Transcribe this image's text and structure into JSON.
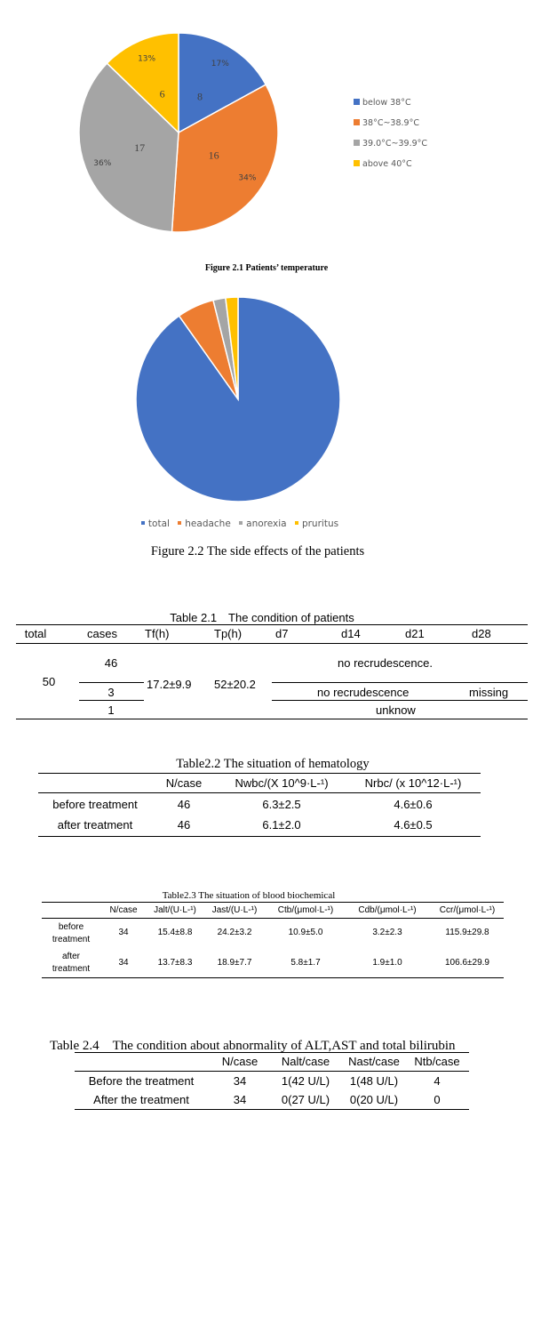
{
  "figure1": {
    "caption": "Figure 2.1 Patients’ temperature",
    "slices": [
      {
        "legend": "below 38°C",
        "count": "8",
        "percent": "17%",
        "value": 8,
        "color": "#4472c4"
      },
      {
        "legend": "38°C~38.9°C",
        "count": "16",
        "percent": "34%",
        "value": 16,
        "color": "#ed7d31"
      },
      {
        "legend": "39.0°C~39.9°C",
        "count": "17",
        "percent": "36%",
        "value": 17,
        "color": "#a5a5a5"
      },
      {
        "legend": "above 40°C",
        "count": "6",
        "percent": "13%",
        "value": 6,
        "color": "#ffc000"
      }
    ]
  },
  "figure2": {
    "caption": "Figure 2.2 The side effects of the patients",
    "slices": [
      {
        "legend": "total",
        "value": 46,
        "color": "#4472c4"
      },
      {
        "legend": "headache",
        "value": 3,
        "color": "#ed7d31"
      },
      {
        "legend": "anorexia",
        "value": 1,
        "color": "#a5a5a5"
      },
      {
        "legend": "pruritus",
        "value": 1,
        "color": "#ffc000"
      }
    ]
  },
  "chart_data": [
    {
      "type": "pie",
      "title": "Figure 2.1 Patients’ temperature",
      "categories": [
        "below 38°C",
        "38°C~38.9°C",
        "39.0°C~39.9°C",
        "above 40°C"
      ],
      "values": [
        8,
        16,
        17,
        6
      ],
      "percent_labels": [
        "17%",
        "34%",
        "36%",
        "13%"
      ],
      "legend": "right"
    },
    {
      "type": "pie",
      "title": "Figure 2.2 The side effects of the patients",
      "categories": [
        "total",
        "headache",
        "anorexia",
        "pruritus"
      ],
      "values": [
        46,
        3,
        1,
        1
      ],
      "legend": "bottom"
    }
  ],
  "table1": {
    "title": "Table 2.1　The condition of patients",
    "headers": [
      "total",
      "cases",
      "Tf(h)",
      "Tp(h)",
      "d7",
      "d14",
      "d21",
      "d28"
    ],
    "total": "50",
    "cases": [
      "46",
      "3",
      "1"
    ],
    "tf": "17.2±9.9",
    "tp": "52±20.2",
    "row1_status": "no recrudescence.",
    "row2_status": "no recrudescence",
    "row2_d28": "missing",
    "row3_status": "unknow"
  },
  "table2": {
    "title": "Table2.2 The situation of hematology",
    "headers": [
      "",
      "N/case",
      "Nwbc/(X 10^9·L-¹)",
      "Nrbc/  (x 10^12·L-¹)"
    ],
    "rows": [
      [
        "before treatment",
        "46",
        "6.3±2.5",
        "4.6±0.6"
      ],
      [
        "after treatment",
        "46",
        "6.1±2.0",
        "4.6±0.5"
      ]
    ]
  },
  "table3": {
    "title": "Table2.3 The situation of blood biochemical",
    "headers": [
      "",
      "N/case",
      "Jalt/(U·L-¹)",
      "Jast/(U·L-¹)",
      "Ctb/(μmol·L-¹)",
      "Cdb/(μmol·L-¹)",
      "Ccr/(μmol·L-¹)"
    ],
    "rows": [
      [
        "before\ntreatment",
        "34",
        "15.4±8.8",
        "24.2±3.2",
        "10.9±5.0",
        "3.2±2.3",
        "115.9±29.8"
      ],
      [
        "after\ntreatment",
        "34",
        "13.7±8.3",
        "18.9±7.7",
        "5.8±1.7",
        "1.9±1.0",
        "106.6±29.9"
      ]
    ]
  },
  "table4": {
    "title": "Table 2.4　The condition about abnormality of ALT,AST and total bilirubin",
    "headers": [
      "",
      "N/case",
      "Nalt/case",
      "Nast/case",
      "Ntb/case"
    ],
    "rows": [
      [
        "Before the treatment",
        "34",
        "1(42 U/L)",
        "1(48 U/L)",
        "4"
      ],
      [
        "After the treatment",
        "34",
        "0(27 U/L)",
        "0(20 U/L)",
        "0"
      ]
    ]
  }
}
